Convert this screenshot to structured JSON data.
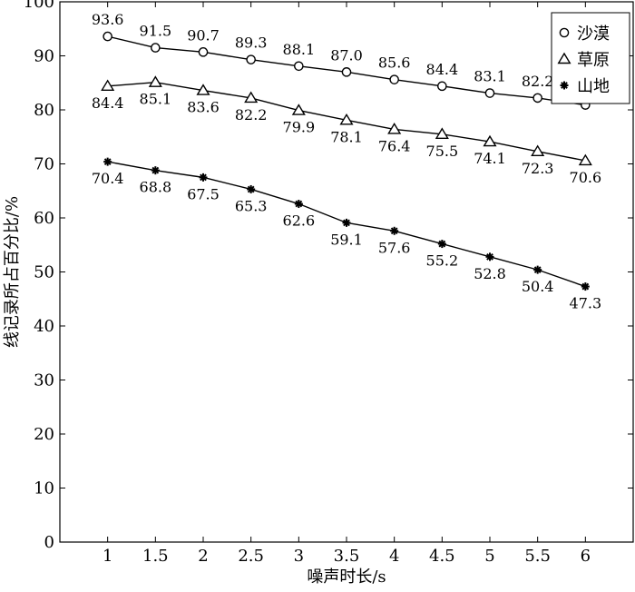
{
  "chart_data": {
    "type": "line",
    "title": "",
    "xlabel": "噪声时长/s",
    "ylabel": "线记录所占百分比/%",
    "x": [
      1,
      1.5,
      2,
      2.5,
      3,
      3.5,
      4,
      4.5,
      5,
      5.5,
      6
    ],
    "x_tick_labels": [
      "1",
      "1.5",
      "2",
      "2.5",
      "3",
      "3.5",
      "4",
      "4.5",
      "5",
      "5.5",
      "6"
    ],
    "xlim": [
      0.5,
      6.5
    ],
    "ylim": [
      0,
      100
    ],
    "y_ticks": [
      0,
      10,
      20,
      30,
      40,
      50,
      60,
      70,
      80,
      90,
      100
    ],
    "grid": false,
    "legend_position": "top-right",
    "series": [
      {
        "name": "沙漠",
        "marker": "circle",
        "label_position": "above",
        "values": [
          93.6,
          91.5,
          90.7,
          89.3,
          88.1,
          87.0,
          85.6,
          84.4,
          83.1,
          82.2,
          80.9
        ],
        "labels": [
          "93.6",
          "91.5",
          "90.7",
          "89.3",
          "88.1",
          "87.0",
          "85.6",
          "84.4",
          "83.1",
          "82.2",
          "80.9"
        ]
      },
      {
        "name": "草原",
        "marker": "triangle",
        "label_position": "below",
        "values": [
          84.4,
          85.1,
          83.6,
          82.2,
          79.9,
          78.1,
          76.4,
          75.5,
          74.1,
          72.3,
          70.6
        ],
        "labels": [
          "84.4",
          "85.1",
          "83.6",
          "82.2",
          "79.9",
          "78.1",
          "76.4",
          "75.5",
          "74.1",
          "72.3",
          "70.6"
        ]
      },
      {
        "name": "山地",
        "marker": "asterisk",
        "label_position": "below",
        "values": [
          70.4,
          68.8,
          67.5,
          65.3,
          62.6,
          59.1,
          57.6,
          55.2,
          52.8,
          50.4,
          47.3
        ],
        "labels": [
          "70.4",
          "68.8",
          "67.5",
          "65.3",
          "62.6",
          "59.1",
          "57.6",
          "55.2",
          "52.8",
          "50.4",
          "47.3"
        ]
      }
    ]
  }
}
